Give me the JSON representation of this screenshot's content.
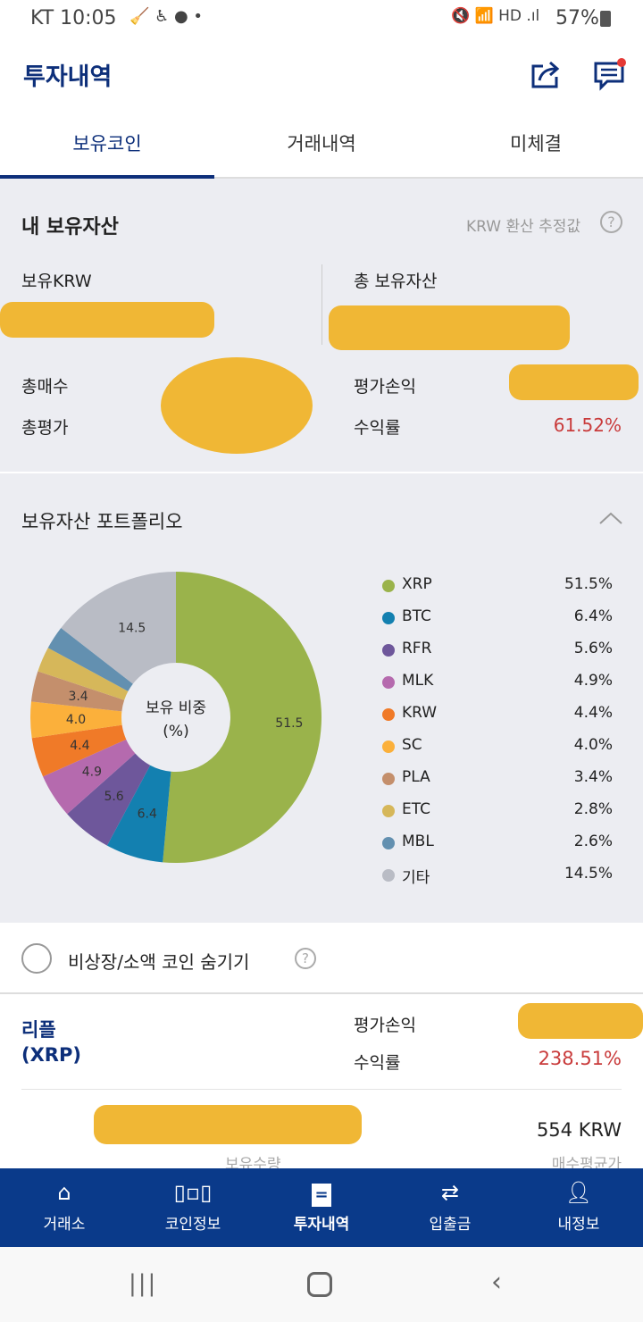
{
  "status_bar": {
    "carrier_time": "KT 10:05",
    "battery": "57%"
  },
  "header": {
    "title": "투자내역"
  },
  "tabs": [
    {
      "label": "보유코인"
    },
    {
      "label": "거래내역"
    },
    {
      "label": "미체결"
    }
  ],
  "assets": {
    "title": "내 보유자산",
    "krw_note": "KRW 환산 추정값",
    "krw_label": "보유KRW",
    "total_label": "총 보유자산",
    "buy_label": "총매수",
    "eval_label": "총평가",
    "pl_label": "평가손익",
    "rate_label": "수익률",
    "rate_value": "61.52%"
  },
  "portfolio": {
    "title": "보유자산 포트폴리오",
    "center_label": "보유 비중",
    "center_unit": "(%)"
  },
  "chart_data": {
    "type": "pie",
    "donut": true,
    "categories": [
      "XRP",
      "BTC",
      "RFR",
      "MLK",
      "KRW",
      "SC",
      "PLA",
      "ETC",
      "MBL",
      "기타"
    ],
    "values": [
      51.5,
      6.4,
      5.6,
      4.9,
      4.4,
      4.0,
      3.4,
      2.8,
      2.6,
      14.5
    ],
    "value_labels": [
      "51.5%",
      "6.4%",
      "5.6%",
      "4.9%",
      "4.4%",
      "4.0%",
      "3.4%",
      "2.8%",
      "2.6%",
      "14.5%"
    ],
    "slice_labels": [
      "51.5",
      "6.4",
      "5.6",
      "4.9",
      "4.4",
      "4.0",
      "3.4",
      "",
      "",
      "14.5"
    ],
    "colors": [
      "#9ab34b",
      "#1380b0",
      "#6e579b",
      "#b56aae",
      "#f07a28",
      "#fbb03b",
      "#c48f6c",
      "#d6b75a",
      "#6390b0",
      "#b9bcc5"
    ],
    "legend": "right"
  },
  "filter": {
    "label": "비상장/소액 코인 숨기기"
  },
  "coin": {
    "name": "리플",
    "symbol": "(XRP)",
    "pl_label": "평가손익",
    "rate_label": "수익률",
    "rate_value": "238.51%",
    "avg_price": "554",
    "avg_unit": "KRW",
    "qty_label": "보유수량",
    "avg_label": "매수평균가"
  },
  "bottom_nav": [
    {
      "label": "거래소",
      "icon": "home-icon"
    },
    {
      "label": "코인정보",
      "icon": "bar-chart-icon"
    },
    {
      "label": "투자내역",
      "icon": "list-icon"
    },
    {
      "label": "입출금",
      "icon": "transfer-icon"
    },
    {
      "label": "내정보",
      "icon": "user-icon"
    }
  ]
}
